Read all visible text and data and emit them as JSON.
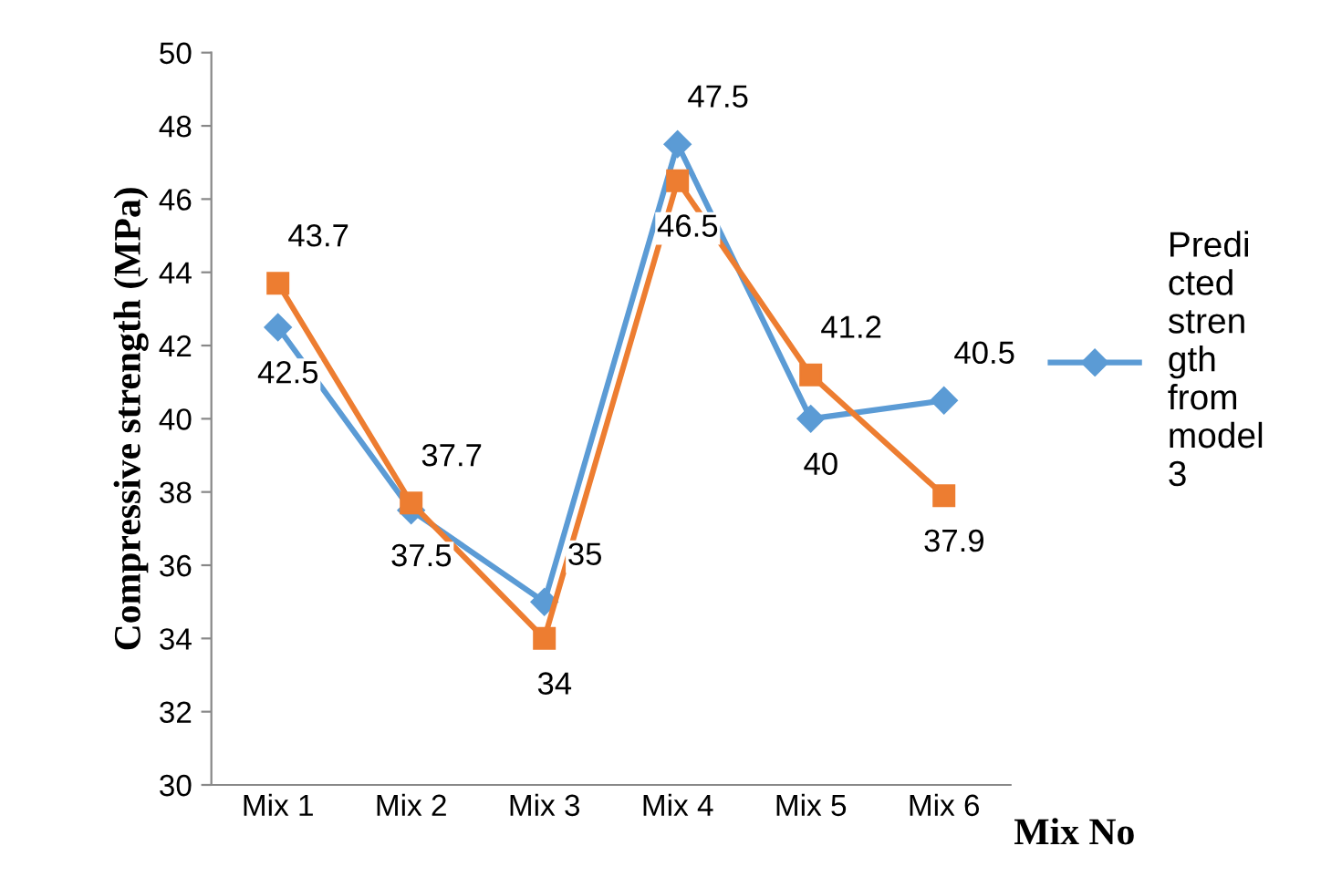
{
  "chart_data": {
    "type": "line",
    "xlabel": "Mix No",
    "ylabel": "Compressive strength (MPa)",
    "categories": [
      "Mix 1",
      "Mix 2",
      "Mix 3",
      "Mix 4",
      "Mix 5",
      "Mix 6"
    ],
    "series": [
      {
        "name": "Predicted strength from model 3",
        "color": "#5b9bd5",
        "marker": "diamond",
        "values": [
          42.5,
          37.5,
          35,
          47.5,
          40,
          40.5
        ]
      },
      {
        "color": "#ed7d31",
        "marker": "square",
        "values": [
          43.7,
          37.7,
          34,
          46.5,
          41.2,
          37.9
        ]
      }
    ],
    "ylim": [
      30,
      50
    ],
    "yticks": [
      30,
      32,
      34,
      36,
      38,
      40,
      42,
      44,
      46,
      48,
      50
    ],
    "grid": false,
    "legend": "right",
    "data_labels": true,
    "line_style": "solid"
  }
}
